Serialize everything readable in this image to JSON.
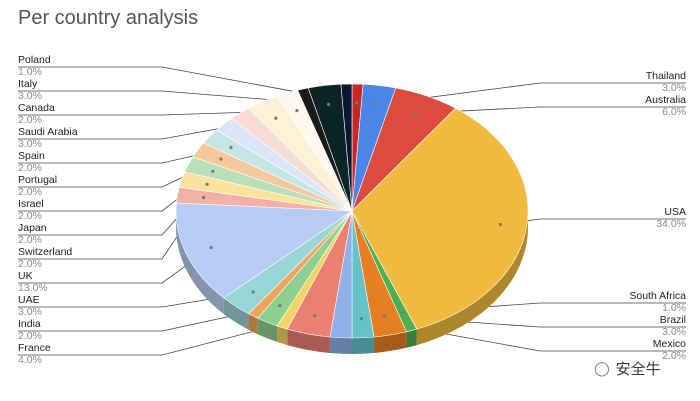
{
  "chart_data": {
    "type": "pie",
    "title": "Per country analysis",
    "slices": [
      {
        "label": "Poland",
        "value": 1.0,
        "pct": "1.0%",
        "color": "#c62828"
      },
      {
        "label": "Thailand",
        "value": 3.0,
        "pct": "3.0%",
        "color": "#4a86e8"
      },
      {
        "label": "Australia",
        "value": 6.0,
        "pct": "6.0%",
        "color": "#dc4b3e"
      },
      {
        "label": "USA",
        "value": 34.0,
        "pct": "34.0%",
        "color": "#f2bb3d"
      },
      {
        "label": "South Africa",
        "value": 1.0,
        "pct": "1.0%",
        "color": "#4caf50"
      },
      {
        "label": "Brazil",
        "value": 3.0,
        "pct": "3.0%",
        "color": "#e67e22"
      },
      {
        "label": "Mexico",
        "value": 2.0,
        "pct": "2.0%",
        "color": "#64c3c8"
      },
      {
        "label": "",
        "value": 2.0,
        "pct": "",
        "color": "#8fb0e8"
      },
      {
        "label": "France",
        "value": 4.0,
        "pct": "4.0%",
        "color": "#e98070"
      },
      {
        "label": "",
        "value": 1.0,
        "pct": "",
        "color": "#f5d266"
      },
      {
        "label": "India",
        "value": 2.0,
        "pct": "2.0%",
        "color": "#8ed08f"
      },
      {
        "label": "",
        "value": 1.0,
        "pct": "",
        "color": "#f0a35a"
      },
      {
        "label": "UAE",
        "value": 3.0,
        "pct": "3.0%",
        "color": "#97d5d7"
      },
      {
        "label": "UK",
        "value": 13.0,
        "pct": "13.0%",
        "color": "#b6ccf5"
      },
      {
        "label": "Switzerland",
        "value": 2.0,
        "pct": "2.0%",
        "color": "#f2b0a8"
      },
      {
        "label": "Japan",
        "value": 2.0,
        "pct": "2.0%",
        "color": "#fbe39b"
      },
      {
        "label": "Israel",
        "value": 2.0,
        "pct": "2.0%",
        "color": "#b9dfb8"
      },
      {
        "label": "Portugal",
        "value": 2.0,
        "pct": "2.0%",
        "color": "#f7c79c"
      },
      {
        "label": "Spain",
        "value": 2.0,
        "pct": "2.0%",
        "color": "#c5e6e6"
      },
      {
        "label": "",
        "value": 2.0,
        "pct": "",
        "color": "#dce6f8"
      },
      {
        "label": "",
        "value": 2.0,
        "pct": "",
        "color": "#f9dcd8"
      },
      {
        "label": "Saudi Arabia",
        "value": 3.0,
        "pct": "3.0%",
        "color": "#fdf2d6"
      },
      {
        "label": "Canada",
        "value": 2.0,
        "pct": "2.0%",
        "color": "#fff8ec"
      },
      {
        "label": "",
        "value": 1.0,
        "pct": "",
        "color": "#1a1a1a"
      },
      {
        "label": "Italy",
        "value": 3.0,
        "pct": "3.0%",
        "color": "#0b2426"
      },
      {
        "label": "",
        "value": 1.0,
        "pct": "",
        "color": "#0d1733"
      }
    ]
  },
  "watermark": {
    "text": "安全牛",
    "icon": "wechat-icon"
  }
}
